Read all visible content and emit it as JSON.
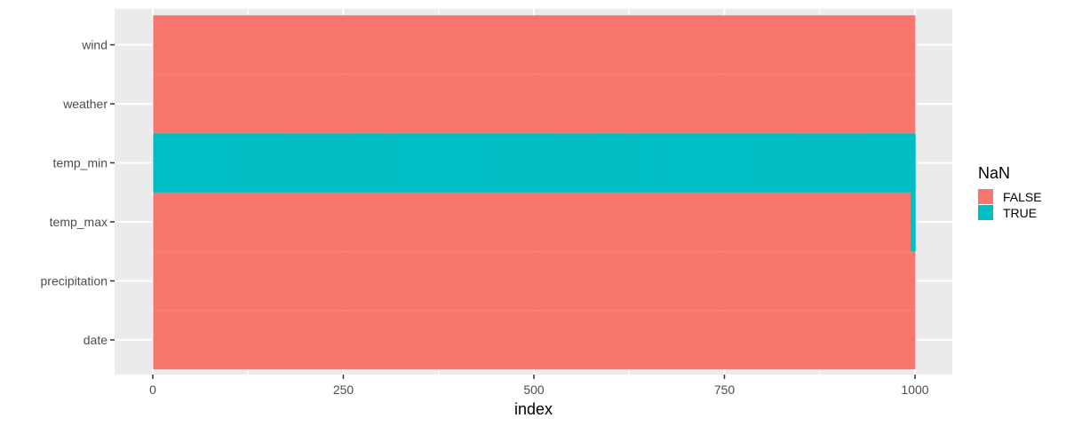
{
  "chart_data": {
    "type": "heatmap",
    "xlabel": "index",
    "ylabel": "",
    "title": "",
    "xlim": [
      0,
      1000
    ],
    "x_ticks": [
      "0",
      "250",
      "500",
      "750",
      "1000"
    ],
    "y_categories": [
      "date",
      "precipitation",
      "temp_max",
      "temp_min",
      "weather",
      "wind"
    ],
    "n_rows": 1000,
    "grid": true,
    "legend": {
      "title": "NaN",
      "position": "right",
      "entries": [
        {
          "label": "FALSE",
          "color": "#F8766D"
        },
        {
          "label": "TRUE",
          "color": "#00BFC4"
        }
      ]
    },
    "missing": {
      "temp_min": [
        1,
        2,
        3,
        4,
        5,
        6,
        7,
        8,
        9,
        10,
        11,
        12,
        13,
        14,
        15,
        16,
        17,
        18,
        19,
        20,
        21,
        22,
        23,
        24,
        25,
        26,
        27,
        28,
        29,
        30,
        31,
        32,
        33,
        34,
        35,
        36,
        37,
        38,
        39,
        40,
        41,
        42,
        43,
        44,
        45,
        46,
        47,
        48,
        49,
        50,
        51,
        52,
        53,
        54,
        55,
        56,
        57,
        58,
        59,
        60,
        61,
        62,
        63,
        64,
        65,
        66,
        67,
        68,
        69,
        70,
        71,
        72,
        73,
        74,
        75,
        76,
        77,
        78,
        79,
        80,
        81,
        82,
        83,
        84,
        85,
        86,
        87,
        88,
        89,
        90,
        91,
        92,
        93,
        94,
        95,
        96,
        97,
        98,
        99,
        100,
        101,
        102,
        103,
        104,
        105,
        106,
        107,
        108,
        109,
        110,
        111,
        112,
        113,
        114,
        115,
        116,
        117,
        118,
        119,
        120,
        121,
        122,
        123,
        124,
        125,
        126,
        127,
        128,
        129,
        130,
        131,
        132,
        133,
        134,
        135,
        136,
        137,
        138,
        139,
        140,
        141,
        142,
        143,
        144,
        145,
        146,
        147,
        148,
        149,
        150,
        151,
        152,
        153,
        154,
        155,
        156,
        157,
        158,
        159,
        160,
        161,
        162,
        163,
        164,
        165,
        166,
        167,
        168,
        169,
        170,
        171,
        172,
        173,
        174,
        175,
        176,
        177,
        178,
        179,
        180,
        181,
        182,
        183,
        184,
        185,
        186,
        187,
        188,
        189,
        190,
        191,
        192,
        193,
        194,
        195,
        196,
        197,
        198,
        199,
        200,
        201,
        202,
        203,
        204,
        205,
        206,
        207,
        208,
        209,
        210,
        211,
        212,
        213,
        214,
        215,
        216,
        217,
        218,
        219,
        220,
        221,
        222,
        223,
        224,
        225,
        226,
        227,
        228,
        229,
        230,
        231,
        232,
        233,
        234,
        235,
        236,
        237,
        238,
        239,
        240,
        241,
        242,
        243,
        244,
        245,
        246,
        247,
        248,
        249,
        250,
        251,
        252,
        253,
        254,
        255,
        256,
        257,
        258,
        259,
        260,
        261,
        262,
        263,
        264,
        265,
        266,
        267,
        268,
        269,
        270,
        271,
        272,
        273,
        274,
        275,
        276,
        277,
        278,
        279,
        280,
        281,
        282,
        283,
        284,
        285,
        286,
        287,
        288,
        289,
        290,
        291,
        292,
        293,
        294,
        295,
        296,
        297,
        298,
        299,
        300,
        301,
        302,
        303,
        304,
        305,
        306,
        307,
        308,
        309,
        310,
        311,
        312,
        313,
        314,
        315,
        316,
        317,
        318,
        319,
        320,
        321,
        322,
        323,
        324,
        325,
        326,
        327,
        328,
        329,
        330,
        331,
        332,
        333,
        334,
        335,
        336,
        337,
        338,
        339,
        340,
        341,
        342,
        343,
        344,
        345,
        346,
        347,
        348,
        349,
        350,
        351,
        352,
        353,
        354,
        355,
        356,
        357,
        358,
        359,
        360,
        361,
        362,
        363,
        364,
        365,
        366,
        367,
        368,
        369,
        370,
        371,
        372,
        373,
        374,
        375,
        376,
        377,
        378,
        379,
        380,
        381,
        382,
        383,
        384,
        385,
        386,
        387,
        388,
        389,
        390,
        391,
        392,
        393,
        394,
        395,
        396,
        397,
        398,
        399,
        400,
        401,
        402,
        403,
        404,
        405,
        406,
        407,
        408,
        409,
        410,
        411,
        412,
        413,
        414,
        415,
        416,
        417,
        418,
        419,
        420,
        421,
        422,
        423,
        424,
        425,
        426,
        427,
        428,
        429,
        430,
        431,
        432,
        433,
        434,
        435,
        436,
        437,
        438,
        439,
        440,
        441,
        442,
        443,
        444,
        445,
        446,
        447,
        448,
        449,
        450,
        451,
        452,
        453,
        454,
        455,
        456,
        457,
        458,
        459,
        460,
        461,
        462,
        463,
        464,
        465,
        466,
        467,
        468,
        469,
        470,
        471,
        472,
        473,
        474,
        475,
        476,
        477,
        478,
        479,
        480,
        481,
        482,
        483,
        484,
        485,
        486,
        487,
        488,
        489,
        490,
        491,
        492,
        493,
        494,
        495,
        496,
        497,
        498,
        499,
        500,
        501,
        502,
        503,
        504,
        505,
        506,
        507,
        508,
        509,
        510,
        511,
        512,
        513,
        514,
        515,
        516,
        517,
        518,
        519,
        520,
        521,
        522,
        523,
        524,
        525,
        526,
        527,
        528,
        529,
        530,
        531,
        532,
        533,
        534,
        535,
        536,
        537,
        538,
        539,
        540,
        541,
        542,
        543,
        544,
        545,
        546,
        547,
        548,
        549,
        550,
        551,
        552,
        553,
        554,
        555,
        556,
        557,
        558,
        559,
        560,
        561,
        562,
        563,
        564,
        565,
        566,
        567,
        568,
        569,
        570,
        571,
        572,
        573,
        574,
        575,
        576,
        577,
        578,
        579,
        580,
        581,
        582,
        583,
        584,
        585,
        586,
        587,
        588,
        589,
        590,
        591,
        592,
        593,
        594,
        595,
        596,
        597,
        598,
        599,
        600,
        601,
        602,
        603,
        604,
        605,
        606,
        607,
        608,
        609,
        610,
        611,
        612,
        613,
        614,
        615,
        616,
        617,
        618,
        619,
        620,
        621,
        622,
        623,
        624,
        625,
        626,
        627,
        628,
        629,
        630,
        631,
        632,
        633,
        634,
        635,
        636,
        637,
        638,
        639,
        640,
        641,
        642,
        643,
        644,
        645,
        646,
        647,
        648,
        649,
        650,
        651,
        652,
        653,
        654,
        655,
        656,
        657,
        658,
        659,
        660,
        661,
        662,
        663,
        664,
        665,
        666,
        667,
        668,
        669,
        670,
        671,
        672,
        673,
        674,
        675,
        676,
        677,
        678,
        679,
        680,
        681,
        682,
        683,
        684,
        685,
        686,
        687,
        688,
        689,
        690,
        691,
        692,
        693,
        694,
        695,
        696,
        697,
        698,
        699,
        700,
        701,
        702,
        703,
        704,
        705,
        706,
        707,
        708,
        709,
        710,
        711,
        712,
        713,
        714,
        715,
        716,
        717,
        718,
        719,
        720,
        721,
        722,
        723,
        724,
        725,
        726,
        727,
        728,
        729,
        730,
        731,
        732,
        733,
        734,
        735,
        736,
        737,
        738,
        739,
        740,
        741,
        742,
        743,
        744,
        745,
        746,
        747,
        748,
        749,
        750,
        751,
        752,
        753,
        754,
        755,
        756,
        757,
        758,
        759,
        760,
        761,
        762,
        763,
        764,
        765,
        766,
        767,
        768,
        769,
        770,
        771,
        772,
        773,
        774,
        775,
        776,
        777,
        778,
        779,
        780,
        781,
        782,
        783,
        784,
        785,
        786,
        787,
        788,
        789,
        790,
        791,
        792,
        793,
        794,
        795,
        796,
        797,
        798,
        799,
        800,
        801,
        802,
        803,
        804,
        805,
        806,
        807,
        808,
        809,
        810,
        811,
        812,
        813,
        814,
        815,
        816,
        817,
        818,
        819,
        820,
        821,
        822,
        823,
        824,
        825,
        826,
        827,
        828,
        829,
        830,
        831,
        832,
        833,
        834,
        835,
        836,
        837,
        838,
        839,
        840,
        841,
        842,
        843,
        844,
        845,
        846,
        847,
        848,
        849,
        850,
        851,
        852,
        853,
        854,
        855,
        856,
        857,
        858,
        859,
        860,
        861,
        862,
        863,
        864,
        865,
        866,
        867,
        868,
        869,
        870,
        871,
        872,
        873,
        874,
        875,
        876,
        877,
        878,
        879,
        880,
        881,
        882,
        883,
        884,
        885,
        886,
        887,
        888,
        889,
        890,
        891,
        892,
        893,
        894,
        895,
        896,
        897,
        898,
        899,
        900,
        901,
        902,
        903,
        904,
        905,
        906,
        907,
        908,
        909,
        910,
        911,
        912,
        913,
        914,
        915,
        916,
        917,
        918,
        919,
        920,
        921,
        922,
        923,
        924,
        925,
        926,
        927,
        928,
        929,
        930,
        931,
        932,
        933,
        934,
        935,
        936,
        937,
        938,
        939,
        940,
        941,
        942,
        943,
        944,
        945,
        946,
        947,
        948,
        949,
        950,
        951,
        952,
        953,
        954,
        955,
        956,
        957,
        958,
        959,
        960,
        961,
        962,
        963,
        964,
        965,
        966,
        967,
        968,
        969,
        970,
        971,
        972,
        973,
        974,
        975,
        976,
        977,
        978,
        979,
        980,
        981,
        982,
        983,
        984,
        985,
        986,
        987,
        988,
        989,
        990,
        991,
        992,
        993,
        994,
        995,
        996,
        997,
        998,
        999,
        1000
      ],
      "temp_max": [
        995,
        996,
        997,
        998,
        999,
        1000
      ]
    }
  }
}
